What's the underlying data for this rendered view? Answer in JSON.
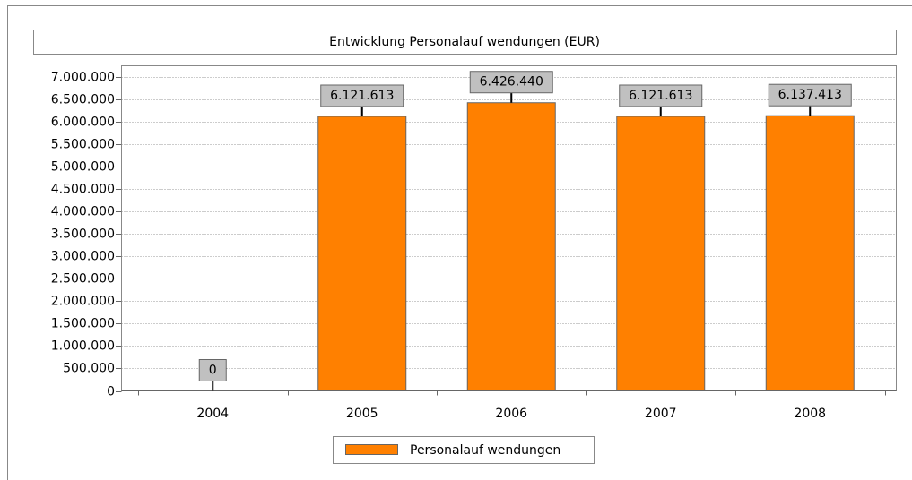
{
  "chart_data": {
    "type": "bar",
    "title": "Entwicklung Personalauf wendungen (EUR)",
    "categories": [
      "2004",
      "2005",
      "2006",
      "2007",
      "2008"
    ],
    "series": [
      {
        "name": "Personalauf wendungen",
        "color": "#ff8000",
        "values": [
          0,
          6121613,
          6426440,
          6121613,
          6137413
        ],
        "value_labels": [
          "0",
          "6.121.613",
          "6.426.440",
          "6.121.613",
          "6.137.413"
        ]
      }
    ],
    "ylim": [
      0,
      7250000
    ],
    "yticks": [
      0,
      {
        "value": 500000,
        "label": "500.000"
      },
      {
        "value": 1000000,
        "label": "1.000.000"
      },
      {
        "value": 1500000,
        "label": "1.500.000"
      },
      {
        "value": 2000000,
        "label": "2.000.000"
      },
      {
        "value": 2500000,
        "label": "2.500.000"
      },
      {
        "value": 3000000,
        "label": "3.000.000"
      },
      {
        "value": 3500000,
        "label": "3.500.000"
      },
      {
        "value": 4000000,
        "label": "4.000.000"
      },
      {
        "value": 4500000,
        "label": "4.500.000"
      },
      {
        "value": 5000000,
        "label": "5.000.000"
      },
      {
        "value": 5500000,
        "label": "5.500.000"
      },
      {
        "value": 6000000,
        "label": "6.000.000"
      },
      {
        "value": 6500000,
        "label": "6.500.000"
      },
      {
        "value": 7000000,
        "label": "7.000.000"
      }
    ],
    "grid": true,
    "legend": "bottom"
  }
}
